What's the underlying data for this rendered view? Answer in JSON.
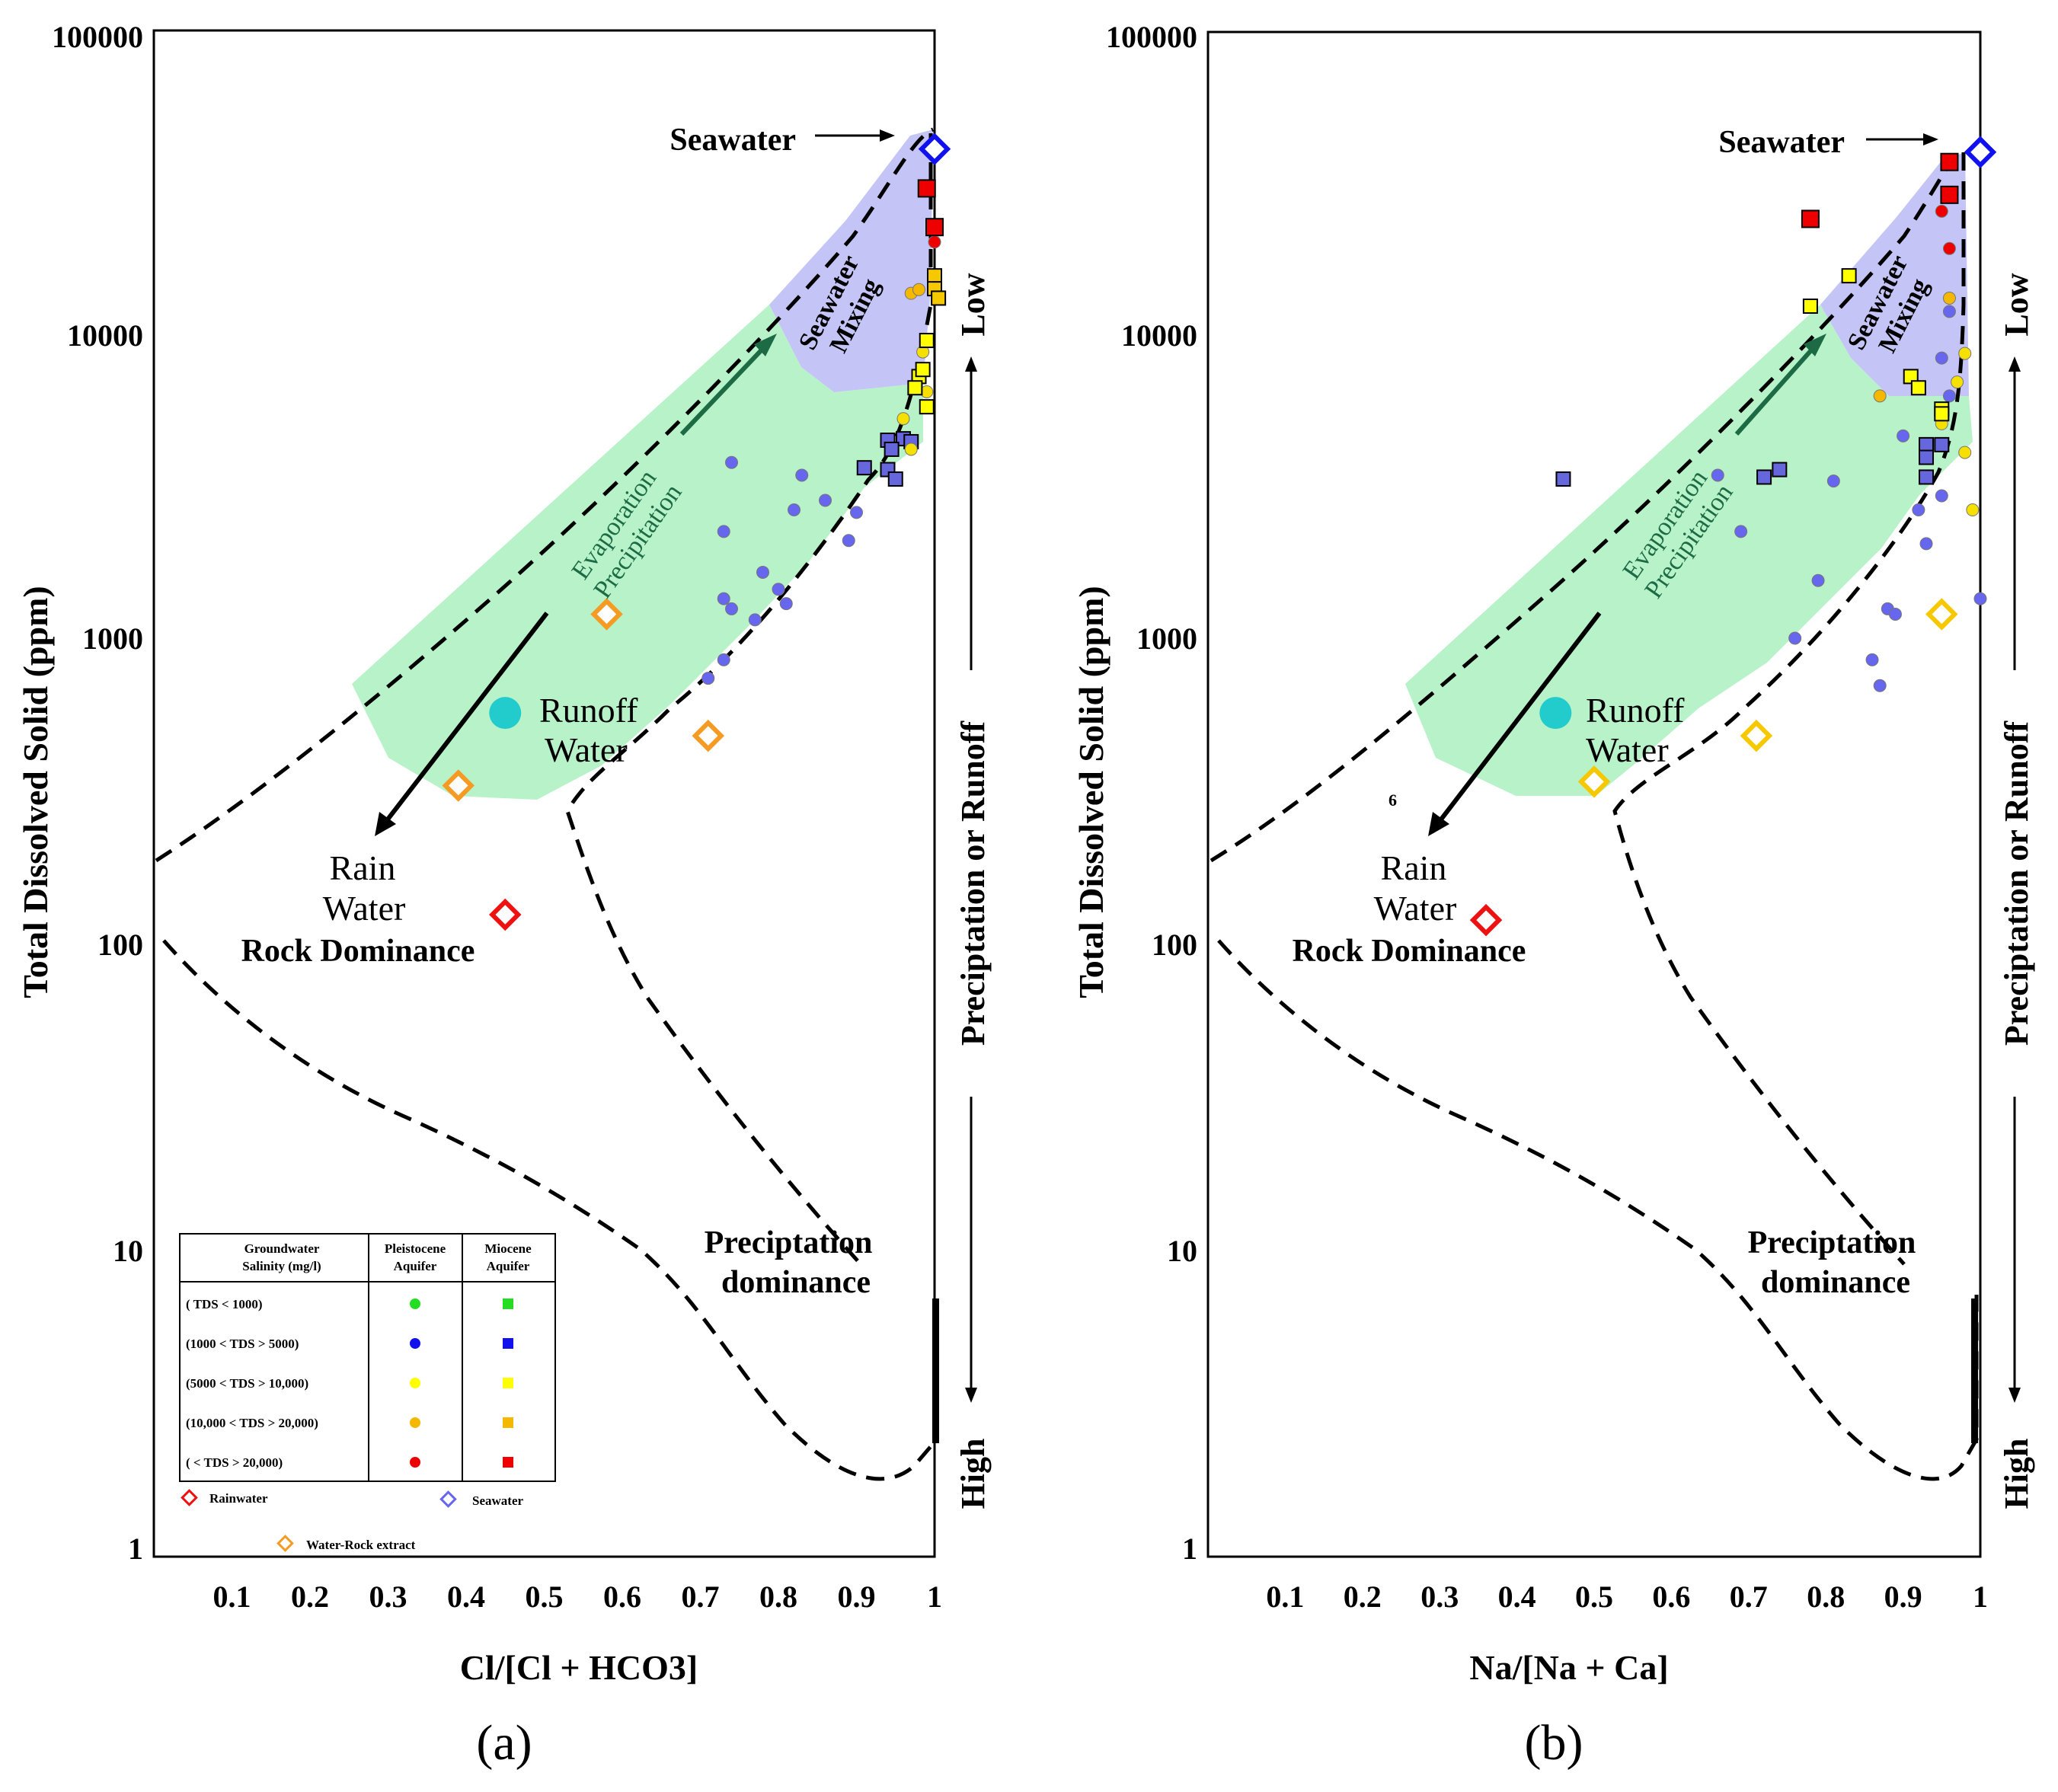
{
  "chart_data": [
    {
      "type": "scatter",
      "panel_label": "(a)",
      "xlabel": "Cl/[Cl + HCO3]",
      "ylabel": "Total Dissolved Solid (ppm)",
      "xlim": [
        0,
        1
      ],
      "ylim": [
        1,
        100000
      ],
      "yscale": "log",
      "x_ticks": [
        "0.1",
        "0.2",
        "0.3",
        "0.4",
        "0.5",
        "0.6",
        "0.7",
        "0.8",
        "0.9",
        "1"
      ],
      "y_ticks": [
        "1",
        "10",
        "100",
        "1000",
        "10000",
        "100000"
      ],
      "annotations": {
        "seawater": "Seawater",
        "seawater_mixing_1": "Seawater",
        "seawater_mixing_2": "Mixing",
        "evaporation_1": "Evaporation",
        "evaporation_2": "Precipitation",
        "runoff_1": "Runoff",
        "runoff_2": "Water",
        "rain_1": "Rain",
        "rain_2": "Water",
        "rock": "Rock Dominance",
        "precip_dom_1": "Preciptation",
        "precip_dom_2": "dominance"
      },
      "side_labels": {
        "low": "Low",
        "middle": "Preciptation or Runoff",
        "high": "High"
      },
      "legend": {
        "head_salinity_1": "Groundwater",
        "head_salinity_2": "Salinity (mg/l)",
        "head_pleis_1": "Pleistocene",
        "head_pleis_2": "Aquifer",
        "head_mio_1": "Miocene",
        "head_mio_2": "Aquifer",
        "rows": [
          {
            "label": "(         TDS  < 1000)",
            "color": "#22dd22"
          },
          {
            "label": "(1000 < TDS > 5000)",
            "color": "#1111ee"
          },
          {
            "label": "(5000 < TDS > 10,000)",
            "color": "#ffff00"
          },
          {
            "label": "(10,000 < TDS > 20,000)",
            "color": "#f5b800"
          },
          {
            "label": "(           < TDS > 20,000)",
            "color": "#ee0000"
          }
        ],
        "rainwater": "Rainwater",
        "seawater": "Seawater",
        "water_rock": "Water-Rock extract"
      },
      "series": [
        {
          "name": "Pleistocene 1000-5000",
          "marker": "circle",
          "color": "#6666ee",
          "points": [
            [
              0.74,
              3800
            ],
            [
              0.73,
              2250
            ],
            [
              0.82,
              2650
            ],
            [
              0.83,
              3450
            ],
            [
              0.86,
              2850
            ],
            [
              0.9,
              2600
            ],
            [
              0.89,
              2100
            ],
            [
              0.78,
              1650
            ],
            [
              0.8,
              1450
            ],
            [
              0.81,
              1300
            ],
            [
              0.73,
              1350
            ],
            [
              0.74,
              1250
            ],
            [
              0.77,
              1150
            ],
            [
              0.73,
              850
            ],
            [
              0.71,
              740
            ]
          ]
        },
        {
          "name": "Miocene 1000-5000",
          "marker": "square",
          "color": "#6666dd",
          "points": [
            [
              0.94,
              4500
            ],
            [
              0.96,
              4550
            ],
            [
              0.97,
              4450
            ],
            [
              0.91,
              3650
            ],
            [
              0.94,
              3600
            ],
            [
              0.95,
              3350
            ],
            [
              0.945,
              4200
            ]
          ]
        },
        {
          "name": "Pleistocene 5000-10000",
          "marker": "circle",
          "color": "#f5e000",
          "points": [
            [
              0.96,
              5300
            ],
            [
              0.97,
              4200
            ],
            [
              0.99,
              6500
            ],
            [
              0.985,
              8800
            ]
          ]
        },
        {
          "name": "Miocene 5000-10000",
          "marker": "square",
          "color": "#ffff00",
          "points": [
            [
              0.98,
              7300
            ],
            [
              0.985,
              7700
            ],
            [
              0.99,
              9600
            ],
            [
              0.99,
              5800
            ],
            [
              0.975,
              6700
            ]
          ]
        },
        {
          "name": "Pleistocene 10000-20000",
          "marker": "circle",
          "color": "#f5b800",
          "points": [
            [
              0.97,
              13800
            ],
            [
              0.98,
              14200
            ]
          ]
        },
        {
          "name": "Miocene 10000-20000",
          "marker": "square",
          "color": "#f5c800",
          "points": [
            [
              1.0,
              15800
            ],
            [
              1.0,
              14300
            ],
            [
              1.005,
              13300
            ]
          ]
        },
        {
          "name": "Pleistocene >20000",
          "marker": "circle",
          "color": "#ee0000",
          "points": [
            [
              1.0,
              20500
            ]
          ]
        },
        {
          "name": "Miocene >20000",
          "marker": "square",
          "color": "#ee0000",
          "points": [
            [
              0.99,
              31000
            ],
            [
              1.0,
              23000
            ]
          ]
        },
        {
          "name": "Seawater",
          "marker": "diamond",
          "color": "#1111ee",
          "points": [
            [
              1.0,
              42000
            ]
          ]
        },
        {
          "name": "Rainwater",
          "marker": "diamond",
          "color": "#ee1111",
          "points": [
            [
              0.45,
              125
            ]
          ]
        },
        {
          "name": "Water-Rock extract",
          "marker": "diamond",
          "color": "#f59a22",
          "points": [
            [
              0.58,
              1200
            ],
            [
              0.71,
              480
            ],
            [
              0.39,
              330
            ]
          ]
        },
        {
          "name": "Runoff Water",
          "marker": "bigcircle",
          "color": "#22cccc",
          "points": [
            [
              0.45,
              570
            ]
          ]
        }
      ]
    },
    {
      "type": "scatter",
      "panel_label": "(b)",
      "xlabel": "Na/[Na + Ca]",
      "ylabel": "Total Dissolved Solid (ppm)",
      "xlim": [
        0,
        1
      ],
      "ylim": [
        1,
        100000
      ],
      "yscale": "log",
      "x_ticks": [
        "0.1",
        "0.2",
        "0.3",
        "0.4",
        "0.5",
        "0.6",
        "0.7",
        "0.8",
        "0.9",
        "1"
      ],
      "y_ticks": [
        "1",
        "10",
        "100",
        "1000",
        "10000",
        "100000"
      ],
      "annotations": {
        "seawater": "Seawater",
        "seawater_mixing_1": "Seawater",
        "seawater_mixing_2": "Mixing",
        "evaporation_1": "Evaporation",
        "evaporation_2": "Precipitation",
        "runoff_1": "Runoff",
        "runoff_2": "Water",
        "rain_1": "Rain",
        "rain_2": "Water",
        "rock": "Rock Dominance",
        "precip_dom_1": "Preciptation",
        "precip_dom_2": "dominance",
        "stray": "6"
      },
      "side_labels": {
        "low": "Low",
        "middle": "Preciptation or Runoff",
        "high": "High"
      },
      "series": [
        {
          "name": "Pleistocene 1000-5000",
          "marker": "circle",
          "color": "#6666ee",
          "points": [
            [
              0.66,
              3450
            ],
            [
              0.69,
              2250
            ],
            [
              0.81,
              3300
            ],
            [
              0.79,
              1550
            ],
            [
              0.88,
              1250
            ],
            [
              0.89,
              1200
            ],
            [
              0.93,
              2050
            ],
            [
              0.92,
              2650
            ],
            [
              0.9,
              4650
            ],
            [
              0.86,
              850
            ],
            [
              0.87,
              700
            ],
            [
              0.76,
              1000
            ],
            [
              0.95,
              2950
            ],
            [
              1.0,
              1350
            ],
            [
              0.96,
              12000
            ],
            [
              0.95,
              8400
            ],
            [
              0.96,
              6300
            ]
          ]
        },
        {
          "name": "Miocene 1000-5000",
          "marker": "square",
          "color": "#6666dd",
          "points": [
            [
              0.46,
              3350
            ],
            [
              0.72,
              3400
            ],
            [
              0.74,
              3600
            ],
            [
              0.93,
              4350
            ],
            [
              0.95,
              4350
            ],
            [
              0.93,
              3950
            ],
            [
              0.93,
              3400
            ]
          ]
        },
        {
          "name": "Pleistocene 5000-10000",
          "marker": "circle",
          "color": "#f5e000",
          "points": [
            [
              0.98,
              8700
            ],
            [
              0.97,
              7000
            ],
            [
              0.98,
              4100
            ],
            [
              0.95,
              5100
            ],
            [
              0.99,
              2650
            ]
          ]
        },
        {
          "name": "Miocene 5000-10000",
          "marker": "square",
          "color": "#ffff00",
          "points": [
            [
              0.83,
              15800
            ],
            [
              0.78,
              12500
            ],
            [
              0.91,
              7300
            ],
            [
              0.92,
              6700
            ],
            [
              0.95,
              5700
            ],
            [
              0.95,
              5500
            ]
          ]
        },
        {
          "name": "Pleistocene 10000-20000",
          "marker": "circle",
          "color": "#f5b800",
          "points": [
            [
              0.96,
              13300
            ],
            [
              0.87,
              6300
            ]
          ]
        },
        {
          "name": "Pleistocene >20000",
          "marker": "circle",
          "color": "#ee0000",
          "points": [
            [
              0.95,
              26000
            ],
            [
              0.96,
              19500
            ]
          ]
        },
        {
          "name": "Miocene >20000",
          "marker": "square",
          "color": "#ee0000",
          "points": [
            [
              0.96,
              38000
            ],
            [
              0.96,
              29500
            ],
            [
              0.78,
              24500
            ]
          ]
        },
        {
          "name": "Seawater",
          "marker": "diamond",
          "color": "#1111ee",
          "points": [
            [
              1.0,
              41000
            ]
          ]
        },
        {
          "name": "Rainwater",
          "marker": "diamond",
          "color": "#ee1111",
          "points": [
            [
              0.36,
              120
            ]
          ]
        },
        {
          "name": "Water-Rock extract",
          "marker": "diamond",
          "color": "#f5c800",
          "points": [
            [
              0.95,
              1200
            ],
            [
              0.71,
              480
            ],
            [
              0.5,
              340
            ]
          ]
        },
        {
          "name": "Runoff Water",
          "marker": "bigcircle",
          "color": "#22cccc",
          "points": [
            [
              0.45,
              570
            ]
          ]
        }
      ]
    }
  ]
}
